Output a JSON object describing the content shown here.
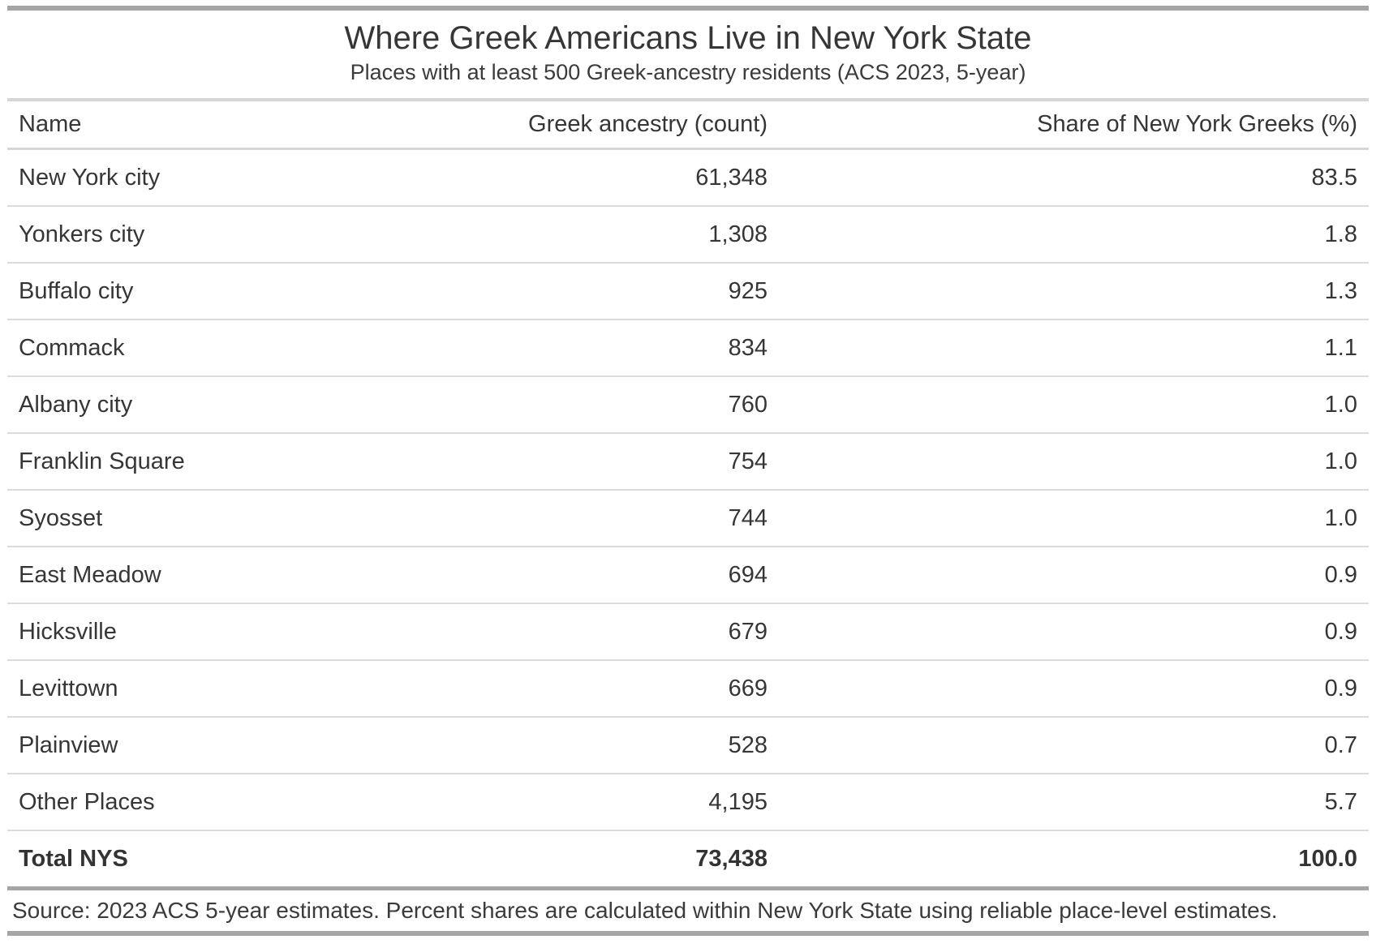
{
  "table": {
    "title": "Where Greek Americans Live in New York State",
    "subtitle": "Places with at least 500 Greek-ancestry residents (ACS 2023, 5-year)",
    "columns": [
      "Name",
      "Greek ancestry (count)",
      "Share of New York Greeks (%)"
    ],
    "rows": [
      {
        "name": "New York city",
        "count": "61,348",
        "share": "83.5"
      },
      {
        "name": "Yonkers city",
        "count": "1,308",
        "share": "1.8"
      },
      {
        "name": "Buffalo city",
        "count": "925",
        "share": "1.3"
      },
      {
        "name": "Commack",
        "count": "834",
        "share": "1.1"
      },
      {
        "name": "Albany city",
        "count": "760",
        "share": "1.0"
      },
      {
        "name": "Franklin Square",
        "count": "754",
        "share": "1.0"
      },
      {
        "name": "Syosset",
        "count": "744",
        "share": "1.0"
      },
      {
        "name": "East Meadow",
        "count": "694",
        "share": "0.9"
      },
      {
        "name": "Hicksville",
        "count": "679",
        "share": "0.9"
      },
      {
        "name": "Levittown",
        "count": "669",
        "share": "0.9"
      },
      {
        "name": "Plainview",
        "count": "528",
        "share": "0.7"
      },
      {
        "name": "Other Places",
        "count": "4,195",
        "share": "5.7"
      }
    ],
    "total": {
      "name": "Total NYS",
      "count": "73,438",
      "share": "100.0"
    },
    "source_note": "Source: 2023 ACS 5-year estimates. Percent shares are calculated within New York State using reliable place-level estimates."
  },
  "chart_data": {
    "type": "table",
    "title": "Where Greek Americans Live in New York State",
    "subtitle": "Places with at least 500 Greek-ancestry residents (ACS 2023, 5-year)",
    "columns": [
      "Name",
      "Greek ancestry (count)",
      "Share of New York Greeks (%)"
    ],
    "rows": [
      [
        "New York city",
        61348,
        83.5
      ],
      [
        "Yonkers city",
        1308,
        1.8
      ],
      [
        "Buffalo city",
        925,
        1.3
      ],
      [
        "Commack",
        834,
        1.1
      ],
      [
        "Albany city",
        760,
        1.0
      ],
      [
        "Franklin Square",
        754,
        1.0
      ],
      [
        "Syosset",
        744,
        1.0
      ],
      [
        "East Meadow",
        694,
        0.9
      ],
      [
        "Hicksville",
        679,
        0.9
      ],
      [
        "Levittown",
        669,
        0.9
      ],
      [
        "Plainview",
        528,
        0.7
      ],
      [
        "Other Places",
        4195,
        5.7
      ]
    ],
    "total": [
      "Total NYS",
      73438,
      100.0
    ],
    "source": "Source: 2023 ACS 5-year estimates. Percent shares are calculated within New York State using reliable place-level estimates."
  },
  "colors": {
    "text": "#363636",
    "rule_heavy": "#a5a5a5",
    "rule_light": "#dcdcdc",
    "background": "#ffffff"
  }
}
